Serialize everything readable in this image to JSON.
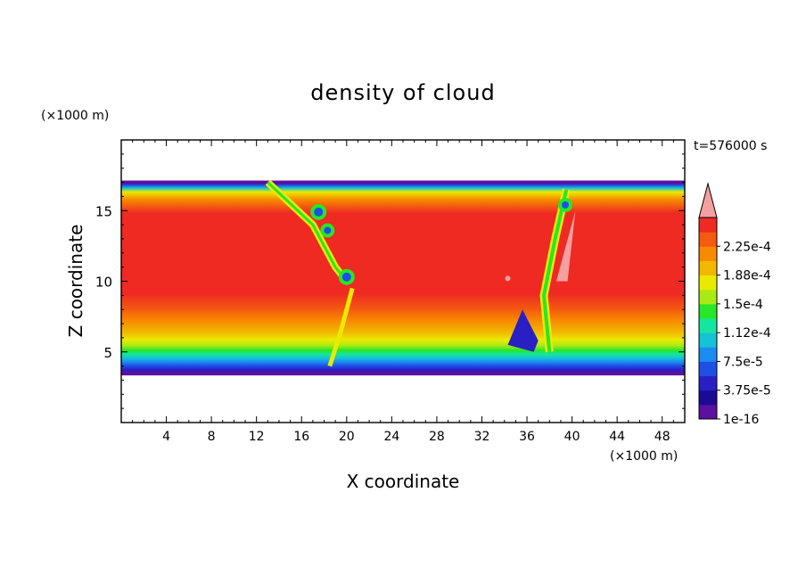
{
  "chart_data": {
    "type": "heatmap",
    "title": "density of cloud",
    "xlabel": "X coordinate",
    "ylabel": "Z coordinate",
    "x_unit": "(×1000 m)",
    "y_unit": "(×1000 m)",
    "time_label": "t=576000 s",
    "xlim": [
      0,
      50
    ],
    "ylim": [
      0,
      20
    ],
    "x_ticks": [
      4,
      8,
      12,
      16,
      20,
      24,
      28,
      32,
      36,
      40,
      44,
      48
    ],
    "y_ticks": [
      5,
      10,
      15
    ],
    "colorbar": {
      "labels": [
        "1e-16",
        "3.75e-5",
        "7.5e-5",
        "1.12e-4",
        "1.5e-4",
        "1.88e-4",
        "2.25e-4"
      ],
      "levels": [
        "1e-16",
        "1.88e-5",
        "3.75e-5",
        "5.63e-5",
        "7.5e-5",
        "9.38e-5",
        "1.12e-4",
        "1.31e-4",
        "1.5e-4",
        "1.69e-4",
        "1.88e-4",
        "2.06e-4",
        "2.25e-4",
        "2.44e-4"
      ],
      "colors": [
        "#5a10a0",
        "#1c0a94",
        "#2a1fc4",
        "#1e50e6",
        "#1a8cf2",
        "#16c2d6",
        "#14e6a0",
        "#28e628",
        "#a8ea14",
        "#eaea00",
        "#f2b800",
        "#f88a00",
        "#f45a10",
        "#ee2a22"
      ],
      "extend_color": "#f4a0a0"
    },
    "cloud_layer_z": [
      3.4,
      17.0
    ],
    "field_peak_value": "2.44e-4"
  }
}
